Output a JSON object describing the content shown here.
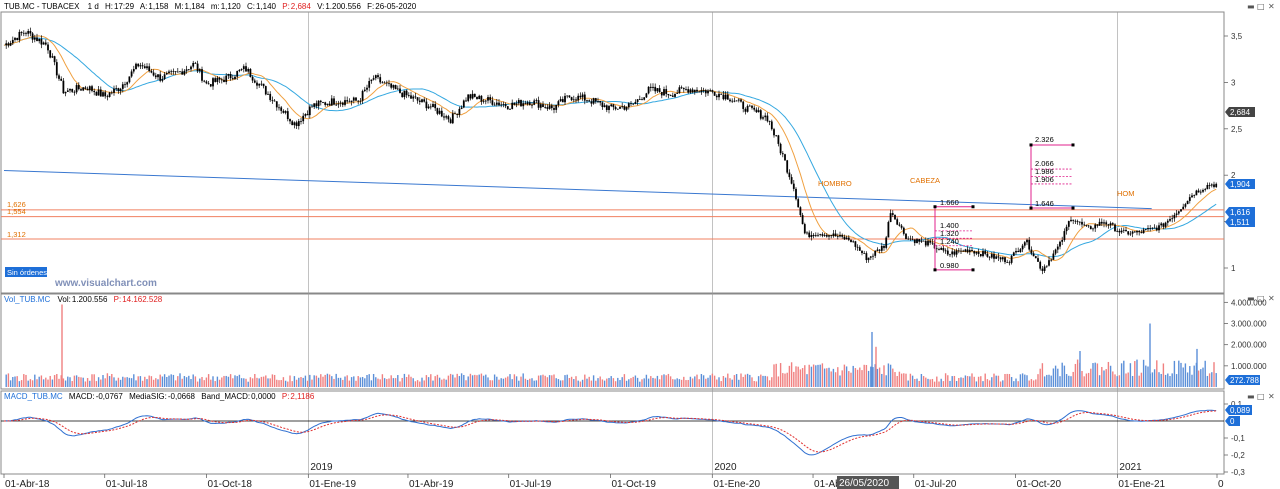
{
  "header": {
    "symbol": "TUB.MC - TUBACEX",
    "interval": "1 d",
    "h_label": "H:",
    "h_value": "17:29",
    "a_label": "A:",
    "a_value": "1,158",
    "m_label": "M:",
    "m_value": "1,184",
    "mn_label": "m:",
    "mn_value": "1,120",
    "c_label": "C:",
    "c_value": "1,140",
    "p_label": "P:",
    "p_value": "2,684",
    "v_label": "V:",
    "v_value": "1.200.556",
    "f_label": "F:",
    "f_value": "26-05-2020"
  },
  "price_panel": {
    "order_badge": "Sin órdenes",
    "watermark": "www.visualchart.com",
    "pattern_labels": [
      "HOMBRO",
      "CABEZA",
      "HOM"
    ],
    "hline_labels": [
      "1,626",
      "1,554",
      "1,312"
    ],
    "ticker_badges": [
      "2,684",
      "1,904",
      "1,616",
      "1,511"
    ],
    "projection_a": [
      "1.660",
      "1.400",
      "1.320",
      "1.240",
      "0.980"
    ],
    "projection_b": [
      "2.326",
      "2.066",
      "1.986",
      "1.906",
      "1.646"
    ]
  },
  "volume_panel": {
    "title": "Vol_TUB.MC",
    "vol_label": "Vol:",
    "vol_value": "1.200.556",
    "p_label": "P:",
    "p_value": "14.162.528",
    "badge": "272.788"
  },
  "macd_panel": {
    "title": "MACD_TUB.MC",
    "macd_label": "MACD:",
    "macd_value": "-0,0767",
    "sig_label": "MediaSIG:",
    "sig_value": "-0,0668",
    "band_label": "Band_MACD:",
    "band_value": "0,0000",
    "p_label": "P:",
    "p_value": "2,1186",
    "badges": [
      "0,089",
      "0"
    ]
  },
  "x_axis": {
    "date_labels": [
      "01-Abr-18",
      "01-Jul-18",
      "01-Oct-18",
      "01-Ene-19",
      "01-Abr-19",
      "01-Jul-19",
      "01-Oct-19",
      "01-Ene-20",
      "01-Ab",
      "01-Jul-20",
      "01-Oct-20",
      "01-Ene-21",
      "0"
    ],
    "year_labels": [
      "2019",
      "2020",
      "2021"
    ],
    "cursor_date": "26/05/2020"
  },
  "colors": {
    "bull": "#000000",
    "bear": "#000000",
    "ma_fast": "#f0a040",
    "ma_slow": "#35a8e0",
    "hline": "#f08060",
    "trend": "#3a78d0",
    "proj": "#e0208c",
    "vol_up": "#5b8fd8",
    "vol_down": "#f08080",
    "macd": "#2f6fd0",
    "signal": "#e03030"
  },
  "chart_data": {
    "type": "candlestick",
    "price_axis": {
      "ticks": [
        "3,5",
        "3",
        "2,5",
        "2",
        "1,5",
        "1"
      ],
      "range": [
        0.6,
        3.7
      ]
    },
    "volume_axis": {
      "ticks": [
        "4.000.000",
        "3.000.000",
        "2.000.000",
        "1.000.000"
      ],
      "range": [
        0,
        4300000
      ]
    },
    "macd_axis": {
      "ticks": [
        "0,1",
        "-0,1",
        "-0,2",
        "-0,3"
      ],
      "range": [
        -0.34,
        0.18
      ]
    },
    "horizontal_levels": [
      1.626,
      1.554,
      1.312
    ],
    "trendline": {
      "from": [
        "01-Abr-18",
        2.05
      ],
      "to": [
        "01-Feb-21",
        1.64
      ]
    },
    "anchors": [
      {
        "date": "2018-04-01",
        "close": 3.4
      },
      {
        "date": "2018-04-20",
        "close": 3.55
      },
      {
        "date": "2018-05-10",
        "close": 3.4
      },
      {
        "date": "2018-05-25",
        "close": 2.9
      },
      {
        "date": "2018-06-15",
        "close": 2.95
      },
      {
        "date": "2018-07-01",
        "close": 2.85
      },
      {
        "date": "2018-07-15",
        "close": 2.95
      },
      {
        "date": "2018-08-01",
        "close": 3.2
      },
      {
        "date": "2018-08-20",
        "close": 3.05
      },
      {
        "date": "2018-09-05",
        "close": 3.1
      },
      {
        "date": "2018-09-20",
        "close": 3.2
      },
      {
        "date": "2018-10-01",
        "close": 2.98
      },
      {
        "date": "2018-10-20",
        "close": 3.05
      },
      {
        "date": "2018-11-05",
        "close": 3.15
      },
      {
        "date": "2018-11-20",
        "close": 2.95
      },
      {
        "date": "2018-12-05",
        "close": 2.75
      },
      {
        "date": "2018-12-20",
        "close": 2.55
      },
      {
        "date": "2019-01-05",
        "close": 2.75
      },
      {
        "date": "2019-01-25",
        "close": 2.8
      },
      {
        "date": "2019-02-15",
        "close": 2.8
      },
      {
        "date": "2019-03-01",
        "close": 3.05
      },
      {
        "date": "2019-03-15",
        "close": 2.95
      },
      {
        "date": "2019-04-01",
        "close": 2.85
      },
      {
        "date": "2019-04-20",
        "close": 2.75
      },
      {
        "date": "2019-05-10",
        "close": 2.6
      },
      {
        "date": "2019-05-25",
        "close": 2.85
      },
      {
        "date": "2019-06-15",
        "close": 2.8
      },
      {
        "date": "2019-07-01",
        "close": 2.75
      },
      {
        "date": "2019-07-20",
        "close": 2.8
      },
      {
        "date": "2019-08-10",
        "close": 2.72
      },
      {
        "date": "2019-08-25",
        "close": 2.85
      },
      {
        "date": "2019-09-10",
        "close": 2.82
      },
      {
        "date": "2019-10-01",
        "close": 2.72
      },
      {
        "date": "2019-10-20",
        "close": 2.75
      },
      {
        "date": "2019-11-05",
        "close": 2.92
      },
      {
        "date": "2019-11-25",
        "close": 2.88
      },
      {
        "date": "2019-12-10",
        "close": 2.93
      },
      {
        "date": "2020-01-01",
        "close": 2.9
      },
      {
        "date": "2020-01-15",
        "close": 2.85
      },
      {
        "date": "2020-02-01",
        "close": 2.72
      },
      {
        "date": "2020-02-20",
        "close": 2.62
      },
      {
        "date": "2020-03-05",
        "close": 2.2
      },
      {
        "date": "2020-03-15",
        "close": 1.85
      },
      {
        "date": "2020-03-25",
        "close": 1.35
      },
      {
        "date": "2020-04-05",
        "close": 1.38
      },
      {
        "date": "2020-04-20",
        "close": 1.35
      },
      {
        "date": "2020-05-05",
        "close": 1.3
      },
      {
        "date": "2020-05-20",
        "close": 1.1
      },
      {
        "date": "2020-06-05",
        "close": 1.25
      },
      {
        "date": "2020-06-10",
        "close": 1.62
      },
      {
        "date": "2020-06-25",
        "close": 1.32
      },
      {
        "date": "2020-07-15",
        "close": 1.26
      },
      {
        "date": "2020-08-01",
        "close": 1.15
      },
      {
        "date": "2020-08-20",
        "close": 1.2
      },
      {
        "date": "2020-09-10",
        "close": 1.12
      },
      {
        "date": "2020-09-25",
        "close": 1.08
      },
      {
        "date": "2020-10-10",
        "close": 1.3
      },
      {
        "date": "2020-10-25",
        "close": 0.98
      },
      {
        "date": "2020-11-10",
        "close": 1.25
      },
      {
        "date": "2020-11-20",
        "close": 1.55
      },
      {
        "date": "2020-12-05",
        "close": 1.42
      },
      {
        "date": "2020-12-20",
        "close": 1.5
      },
      {
        "date": "2021-01-05",
        "close": 1.38
      },
      {
        "date": "2021-01-20",
        "close": 1.38
      },
      {
        "date": "2021-02-10",
        "close": 1.45
      },
      {
        "date": "2021-02-25",
        "close": 1.62
      },
      {
        "date": "2021-03-10",
        "close": 1.8
      },
      {
        "date": "2021-03-25",
        "close": 1.9
      }
    ]
  }
}
